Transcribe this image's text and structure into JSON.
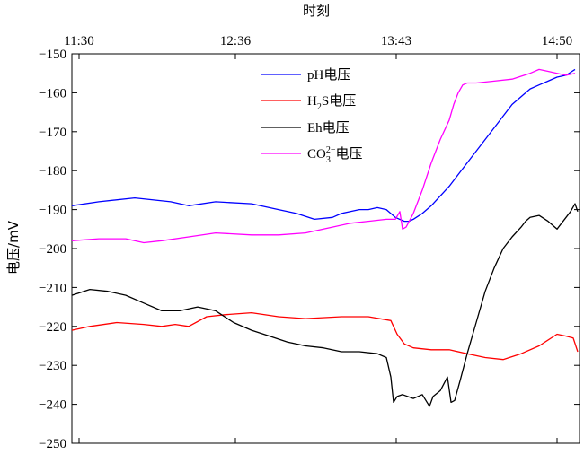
{
  "chart_data": {
    "type": "line",
    "xlabel": "时刻",
    "ylabel": "电压/mV",
    "x_ticks": [
      "11:30",
      "12:36",
      "13:43",
      "14:50"
    ],
    "ylim": [
      -250,
      -150
    ],
    "y_ticks": [
      -150,
      -160,
      -170,
      -180,
      -190,
      -200,
      -210,
      -220,
      -230,
      -240,
      -250
    ],
    "y_tick_labels": [
      "−150",
      "−160",
      "−170",
      "−180",
      "−190",
      "−200",
      "−210",
      "−220",
      "−230",
      "−240",
      "−250"
    ],
    "grid": false,
    "legend_position": "top-center",
    "series": [
      {
        "name": "pH电压",
        "legend_main": "pH",
        "legend_suffix": "电压",
        "color": "#0000ff",
        "x": [
          0,
          30,
          70,
          110,
          130,
          160,
          200,
          230,
          250,
          270,
          290,
          300,
          310,
          320,
          330,
          340,
          350,
          360,
          370,
          375,
          380,
          390,
          400,
          410,
          420,
          430,
          440,
          450,
          460,
          470,
          480,
          490,
          500,
          510,
          520,
          530,
          540,
          550,
          560
        ],
        "values": [
          -189,
          -188,
          -187,
          -188,
          -189,
          -188,
          -188.5,
          -190,
          -191,
          -192.5,
          -192,
          -191,
          -190.5,
          -190,
          -190,
          -189.5,
          -190,
          -192,
          -193,
          -193,
          -192.5,
          -191,
          -189,
          -186.5,
          -184,
          -181,
          -178,
          -175,
          -172,
          -169,
          -166,
          -163,
          -161,
          -159,
          -158,
          -157,
          -156,
          -155.5,
          -154
        ]
      },
      {
        "name": "H2S电压",
        "legend_main": "H",
        "legend_sub": "2",
        "legend_tail": "S",
        "legend_suffix": "电压",
        "color": "#ff0000",
        "x": [
          0,
          20,
          50,
          80,
          100,
          115,
          130,
          150,
          170,
          200,
          230,
          260,
          300,
          330,
          355,
          362,
          370,
          380,
          400,
          420,
          440,
          460,
          480,
          500,
          520,
          540,
          550,
          558,
          563
        ],
        "values": [
          -221,
          -220,
          -219,
          -219.5,
          -220,
          -219.5,
          -220,
          -217.5,
          -217,
          -216.5,
          -217.5,
          -218,
          -217.5,
          -217.5,
          -218.5,
          -222,
          -224.5,
          -225.5,
          -226,
          -226,
          -227,
          -228,
          -228.5,
          -227,
          -225,
          -222,
          -222.5,
          -223,
          -226.5
        ]
      },
      {
        "name": "Eh电压",
        "legend_main": "Eh",
        "legend_suffix": "电压",
        "color": "#000000",
        "x": [
          0,
          20,
          40,
          60,
          80,
          100,
          120,
          140,
          160,
          180,
          200,
          220,
          240,
          260,
          280,
          300,
          320,
          340,
          350,
          355,
          358,
          362,
          368,
          380,
          390,
          398,
          402,
          410,
          418,
          422,
          426,
          432,
          440,
          450,
          460,
          470,
          480,
          490,
          500,
          505,
          510,
          520,
          530,
          540,
          550,
          555,
          560,
          563
        ],
        "values": [
          -212,
          -210.5,
          -211,
          -212,
          -214,
          -216,
          -216,
          -215,
          -216,
          -219,
          -221,
          -222.5,
          -224,
          -225,
          -225.5,
          -226.5,
          -226.5,
          -227,
          -228,
          -233,
          -239.5,
          -238,
          -237.5,
          -238.5,
          -237.5,
          -240.5,
          -238,
          -236.5,
          -233,
          -239.5,
          -239,
          -234,
          -227,
          -219,
          -211,
          -205,
          -200,
          -197,
          -194.5,
          -193,
          -192,
          -191.5,
          -193,
          -195,
          -192,
          -190.5,
          -188.5,
          -190.5
        ]
      },
      {
        "name": "CO32-电压",
        "legend_main": "CO",
        "legend_sub": "3",
        "legend_sup": "2−",
        "legend_suffix": "电压",
        "color": "#ff00ff",
        "x": [
          0,
          30,
          60,
          80,
          100,
          130,
          160,
          200,
          230,
          260,
          290,
          310,
          330,
          350,
          360,
          365,
          368,
          372,
          380,
          390,
          400,
          410,
          420,
          425,
          430,
          435,
          440,
          450,
          470,
          490,
          510,
          520,
          530,
          540,
          550,
          560
        ],
        "values": [
          -198,
          -197.5,
          -197.5,
          -198.5,
          -198,
          -197,
          -196,
          -196.5,
          -196.5,
          -196,
          -194.5,
          -193.5,
          -193,
          -192.5,
          -192.5,
          -190.5,
          -195,
          -194.5,
          -191,
          -185,
          -178,
          -172,
          -167,
          -163,
          -160,
          -158,
          -157.5,
          -157.5,
          -157,
          -156.5,
          -155,
          -154,
          -154.5,
          -155,
          -155.5,
          -155
        ]
      }
    ]
  }
}
